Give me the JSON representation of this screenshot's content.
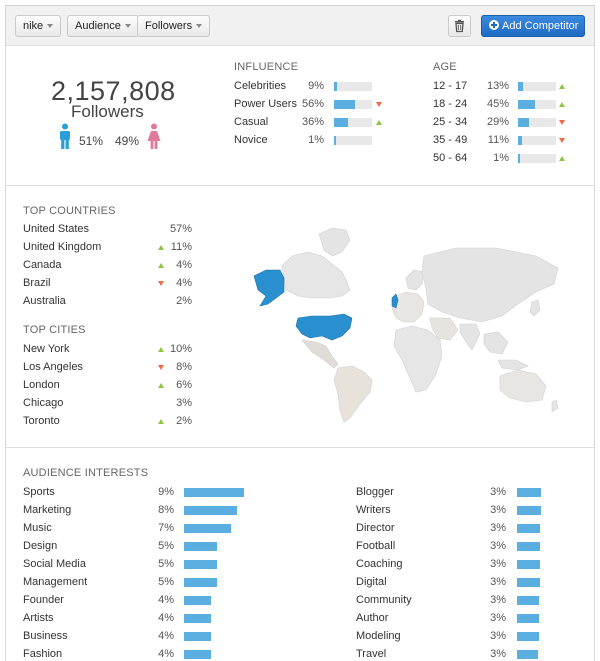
{
  "toolbar": {
    "brand": "nike",
    "audience": "Audience",
    "followers": "Followers",
    "add_competitor": "Add Competitor"
  },
  "summary": {
    "followers_count": "2,157,808",
    "followers_label": "Followers",
    "male_pct": "51%",
    "female_pct": "49%",
    "male_color": "#2a9fd6",
    "female_color": "#e07a9a"
  },
  "influence": {
    "title": "INFLUENCE",
    "items": [
      {
        "label": "Celebrities",
        "pct": "9%",
        "value": 9,
        "trend": "none"
      },
      {
        "label": "Power Users",
        "pct": "56%",
        "value": 56,
        "trend": "down"
      },
      {
        "label": "Casual",
        "pct": "36%",
        "value": 36,
        "trend": "up"
      },
      {
        "label": "Novice",
        "pct": "1%",
        "value": 1,
        "trend": "none"
      }
    ]
  },
  "age": {
    "title": "AGE",
    "items": [
      {
        "label": "12 - 17",
        "pct": "13%",
        "value": 13,
        "trend": "up"
      },
      {
        "label": "18 - 24",
        "pct": "45%",
        "value": 45,
        "trend": "up"
      },
      {
        "label": "25 - 34",
        "pct": "29%",
        "value": 29,
        "trend": "down"
      },
      {
        "label": "35 - 49",
        "pct": "11%",
        "value": 11,
        "trend": "down"
      },
      {
        "label": "50 - 64",
        "pct": "1%",
        "value": 1,
        "trend": "up"
      }
    ]
  },
  "countries": {
    "title": "TOP COUNTRIES",
    "items": [
      {
        "label": "United States",
        "pct": "57%",
        "trend": "none"
      },
      {
        "label": "United Kingdom",
        "pct": "11%",
        "trend": "up"
      },
      {
        "label": "Canada",
        "pct": "4%",
        "trend": "up"
      },
      {
        "label": "Brazil",
        "pct": "4%",
        "trend": "down"
      },
      {
        "label": "Australia",
        "pct": "2%",
        "trend": "none"
      }
    ]
  },
  "cities": {
    "title": "TOP CITIES",
    "items": [
      {
        "label": "New York",
        "pct": "10%",
        "trend": "up"
      },
      {
        "label": "Los Angeles",
        "pct": "8%",
        "trend": "down"
      },
      {
        "label": "London",
        "pct": "6%",
        "trend": "up"
      },
      {
        "label": "Chicago",
        "pct": "3%",
        "trend": "none"
      },
      {
        "label": "Toronto",
        "pct": "2%",
        "trend": "up"
      }
    ]
  },
  "interests": {
    "title": "AUDIENCE INTERESTS",
    "left": [
      {
        "label": "Sports",
        "pct": "9%",
        "value": 9
      },
      {
        "label": "Marketing",
        "pct": "8%",
        "value": 8
      },
      {
        "label": "Music",
        "pct": "7%",
        "value": 7
      },
      {
        "label": "Design",
        "pct": "5%",
        "value": 5
      },
      {
        "label": "Social Media",
        "pct": "5%",
        "value": 5
      },
      {
        "label": "Management",
        "pct": "5%",
        "value": 5
      },
      {
        "label": "Founder",
        "pct": "4%",
        "value": 4
      },
      {
        "label": "Artists",
        "pct": "4%",
        "value": 4
      },
      {
        "label": "Business",
        "pct": "4%",
        "value": 4
      },
      {
        "label": "Fashion",
        "pct": "4%",
        "value": 4
      }
    ],
    "right": [
      {
        "label": "Blogger",
        "pct": "3%",
        "value": 3
      },
      {
        "label": "Writers",
        "pct": "3%",
        "value": 3
      },
      {
        "label": "Director",
        "pct": "3%",
        "value": 3
      },
      {
        "label": "Football",
        "pct": "3%",
        "value": 3
      },
      {
        "label": "Coaching",
        "pct": "3%",
        "value": 3
      },
      {
        "label": "Digital",
        "pct": "3%",
        "value": 3
      },
      {
        "label": "Community",
        "pct": "3%",
        "value": 3
      },
      {
        "label": "Author",
        "pct": "3%",
        "value": 3
      },
      {
        "label": "Modeling",
        "pct": "3%",
        "value": 3
      },
      {
        "label": "Travel",
        "pct": "3%",
        "value": 3
      }
    ]
  },
  "colors": {
    "bar": "#5aaee0",
    "bar_bg": "#e8e8e8",
    "up": "#8dc63f",
    "down": "#f06b46",
    "map_highlight": "#2a8fcf",
    "map_base": "#e4e4e4"
  }
}
